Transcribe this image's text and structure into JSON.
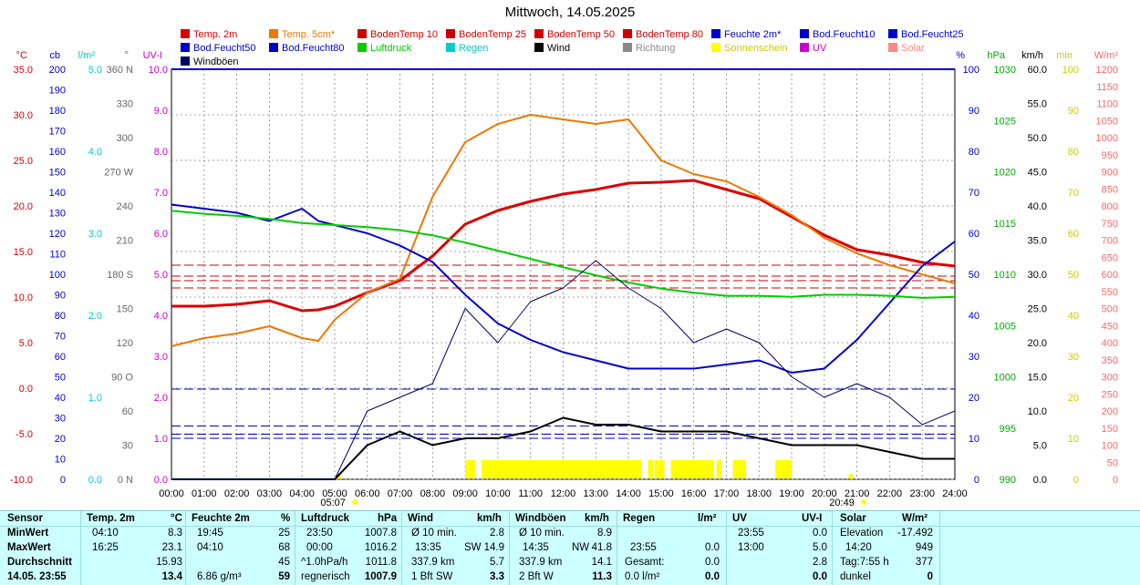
{
  "title": "Mittwoch, 14.05.2025",
  "legend": [
    {
      "label": "Temp. 2m",
      "color": "#dd0000"
    },
    {
      "label": "Temp. 5cm*",
      "color": "#ee7700"
    },
    {
      "label": "BodenTemp 10",
      "color": "#cc0000"
    },
    {
      "label": "BodenTemp 25",
      "color": "#cc0000"
    },
    {
      "label": "BodenTemp 50",
      "color": "#cc0000"
    },
    {
      "label": "BodenTemp 80",
      "color": "#cc0000"
    },
    {
      "label": "Feuchte 2m*",
      "color": "#0000cc"
    },
    {
      "label": "Bod.Feucht10",
      "color": "#0000cc"
    },
    {
      "label": "Bod.Feucht25",
      "color": "#0000cc"
    },
    {
      "label": "Bod.Feucht50",
      "color": "#0000cc"
    },
    {
      "label": "Bod.Feucht80",
      "color": "#0000cc"
    },
    {
      "label": "Luftdruck",
      "color": "#00cc00"
    },
    {
      "label": "Regen",
      "color": "#00cccc"
    },
    {
      "label": "Wind",
      "color": "#000000"
    },
    {
      "label": "Richtung",
      "color": "#888888"
    },
    {
      "label": "Sonnenschein",
      "color": "#ffff00"
    },
    {
      "label": "UV",
      "color": "#cc00cc"
    },
    {
      "label": "Solar",
      "color": "#ff8888"
    },
    {
      "label": "Windböen",
      "color": "#000066"
    }
  ],
  "axis_units": {
    "temp": "°C",
    "cb": "cb",
    "rain": "l/m²",
    "dir": "°",
    "uv": "UV-I",
    "hum": "%",
    "press": "hPa",
    "wind": "km/h",
    "sun": "min",
    "solar": "W/m²"
  },
  "axes": {
    "temp": [
      "35.0",
      "30.0",
      "25.0",
      "20.0",
      "15.0",
      "10.0",
      "5.0",
      "0.0",
      "-5.0",
      "-10.0"
    ],
    "cb": [
      "200",
      "190",
      "180",
      "170",
      "160",
      "150",
      "140",
      "130",
      "120",
      "110",
      "100",
      "90",
      "80",
      "70",
      "60",
      "50",
      "40",
      "30",
      "20",
      "10",
      "0"
    ],
    "rain": [
      "5.0",
      "4.0",
      "3.0",
      "2.0",
      "1.0",
      "0.0"
    ],
    "dir": [
      "360 N",
      "330",
      "300",
      "270 W",
      "240",
      "210",
      "180 S",
      "150",
      "120",
      "90 O",
      "60",
      "30",
      "0 N"
    ],
    "uv": [
      "10.0",
      "9.0",
      "8.0",
      "7.0",
      "6.0",
      "5.0",
      "4.0",
      "3.0",
      "2.0",
      "1.0",
      "0.0"
    ],
    "hum": [
      "100",
      "90",
      "80",
      "70",
      "60",
      "50",
      "40",
      "30",
      "20",
      "10",
      "0"
    ],
    "press": [
      "1030",
      "1025",
      "1020",
      "1015",
      "1010",
      "1005",
      "1000",
      "995",
      "990"
    ],
    "wind": [
      "60.0",
      "55.0",
      "50.0",
      "45.0",
      "40.0",
      "35.0",
      "30.0",
      "25.0",
      "20.0",
      "15.0",
      "10.0",
      "5.0",
      "0.0"
    ],
    "sun": [
      "100",
      "90",
      "80",
      "70",
      "60",
      "50",
      "40",
      "30",
      "20",
      "10",
      "0"
    ],
    "solar": [
      "1200",
      "1150",
      "1100",
      "1050",
      "1000",
      "950",
      "900",
      "850",
      "800",
      "750",
      "700",
      "650",
      "600",
      "550",
      "500",
      "450",
      "400",
      "350",
      "300",
      "250",
      "200",
      "150",
      "100",
      "50",
      "0"
    ]
  },
  "x_ticks": [
    "00:00",
    "01:00",
    "02:00",
    "03:00",
    "04:00",
    "05:00",
    "06:00",
    "07:00",
    "08:00",
    "09:00",
    "10:00",
    "11:00",
    "12:00",
    "13:00",
    "14:00",
    "15:00",
    "16:00",
    "17:00",
    "18:00",
    "19:00",
    "20:00",
    "21:00",
    "22:00",
    "23:00",
    "24:00"
  ],
  "sunrise": "05:07",
  "sunset": "20:49",
  "chart_data": {
    "type": "line",
    "title": "Mittwoch, 14.05.2025",
    "x_hours": [
      0,
      1,
      2,
      3,
      4,
      4.5,
      5,
      6,
      7,
      8,
      9,
      10,
      11,
      12,
      13,
      14,
      15,
      16,
      17,
      18,
      19,
      20,
      21,
      22,
      23,
      24
    ],
    "series": [
      {
        "name": "Temp. 2m",
        "color": "#dd0000",
        "axis": "temp",
        "values": [
          9.0,
          9.0,
          9.2,
          9.6,
          8.5,
          8.6,
          9.0,
          10.5,
          11.8,
          14.5,
          18.0,
          19.5,
          20.5,
          21.3,
          21.8,
          22.5,
          22.6,
          22.8,
          21.8,
          20.8,
          18.8,
          16.8,
          15.2,
          14.6,
          13.8,
          13.4
        ]
      },
      {
        "name": "Temp. 5cm*",
        "color": "#ee7700",
        "axis": "temp",
        "values": [
          4.6,
          5.5,
          6.0,
          6.8,
          5.5,
          5.2,
          7.5,
          10.5,
          12.0,
          21.0,
          27.0,
          29.0,
          30.0,
          29.5,
          29.0,
          29.5,
          25.0,
          23.5,
          22.7,
          21.0,
          19.0,
          16.5,
          14.8,
          13.5,
          12.5,
          11.5
        ]
      },
      {
        "name": "Feuchte 2m*",
        "color": "#0000cc",
        "axis": "hum",
        "values": [
          67,
          66,
          65,
          63,
          66,
          63,
          62,
          60,
          57,
          53,
          45,
          38,
          34,
          31,
          29,
          27,
          27,
          27,
          28,
          29,
          26,
          27,
          34,
          43,
          52,
          58
        ]
      },
      {
        "name": "Luftdruck",
        "color": "#00cc00",
        "axis": "press",
        "values": [
          1016.2,
          1015.9,
          1015.7,
          1015.4,
          1015.0,
          1014.9,
          1014.8,
          1014.6,
          1014.3,
          1013.8,
          1013.1,
          1012.3,
          1011.5,
          1010.7,
          1009.9,
          1009.2,
          1008.6,
          1008.2,
          1007.9,
          1007.9,
          1007.8,
          1008.0,
          1008.0,
          1007.9,
          1007.7,
          1007.8
        ]
      },
      {
        "name": "Wind",
        "color": "#000000",
        "axis": "wind",
        "values": [
          0,
          0,
          0,
          0,
          0,
          0,
          0,
          5,
          7,
          5,
          6,
          6,
          7,
          9,
          8,
          8,
          7,
          7,
          7,
          6,
          5,
          5,
          5,
          4,
          3,
          3
        ]
      },
      {
        "name": "Windböen",
        "color": "#000066",
        "axis": "wind",
        "values": [
          0,
          0,
          0,
          0,
          0,
          0,
          0,
          10,
          12,
          14,
          25,
          20,
          26,
          28,
          32,
          28,
          25,
          20,
          22,
          20,
          15,
          12,
          14,
          12,
          8,
          10
        ]
      }
    ],
    "soil_temps": [
      {
        "name": "BodenTemp 10",
        "value": 13.5
      },
      {
        "name": "BodenTemp 25",
        "value": 12.3
      },
      {
        "name": "BodenTemp 50",
        "value": 11.8
      },
      {
        "name": "BodenTemp 80",
        "value": 11.0
      }
    ],
    "soil_moist": [
      {
        "name": "Bod.Feucht10",
        "value": 22
      },
      {
        "name": "Bod.Feucht25",
        "value": 13
      },
      {
        "name": "Bod.Feucht50",
        "value": 11
      },
      {
        "name": "Bod.Feucht80",
        "value": 10
      }
    ],
    "sunshine": [
      [
        9.0,
        9.3
      ],
      [
        9.5,
        14.4
      ],
      [
        14.6,
        14.75
      ],
      [
        14.8,
        15.1
      ],
      [
        15.3,
        16.6
      ],
      [
        16.7,
        16.85
      ],
      [
        17.2,
        17.6
      ],
      [
        18.5,
        19.0
      ]
    ]
  },
  "table": {
    "headers": {
      "sensor": "Sensor",
      "temp": "Temp. 2m",
      "temp_u": "°C",
      "hum": "Feuchte 2m",
      "hum_u": "%",
      "press": "Luftdruck",
      "press_u": "hPa",
      "wind": "Wind",
      "wind_u": "km/h",
      "gust": "Windböen",
      "gust_u": "km/h",
      "rain": "Regen",
      "rain_u": "l/m²",
      "uvt": "UV",
      "uv_u": "UV-I",
      "solar": "Solar",
      "solar_u": "W/m²"
    },
    "rowlabels": {
      "min": "MinWert",
      "max": "MaxWert",
      "avg": "Durchschnitt",
      "now": "14.05. 23:55"
    },
    "temp": {
      "min_t": "04:10",
      "min": "8.3",
      "max_t": "16:25",
      "max": "23.1",
      "avg": "15.93",
      "now": "13.4"
    },
    "hum": {
      "min_t": "19:45",
      "min": "25",
      "max_t": "04:10",
      "max": "68",
      "avg": "45",
      "now_a": "6.86 g/m³",
      "now": "59"
    },
    "press": {
      "min_t": "23:50",
      "min": "1007.8",
      "max_t": "00:00",
      "max": "1016.2",
      "avg_l": "^1.0hPa/h",
      "avg": "1011.8",
      "now_l": "regnerisch",
      "now": "1007.9"
    },
    "wind": {
      "min_l": "Ø 10 min.",
      "min": "2.8",
      "max_t": "13:35",
      "max_l": "SW",
      "max": "14.9",
      "avg_l": "337.9 km",
      "avg": "5.7",
      "now_l": "1 Bft SW",
      "now": "3.3"
    },
    "gust": {
      "min_l": "Ø 10 min.",
      "min": "8.9",
      "max_t": "14:35",
      "max_l": "NW",
      "max": "41.8",
      "avg_l": "337.9 km",
      "avg": "14.1",
      "now_l": "2 Bft W",
      "now": "11.3"
    },
    "rain": {
      "max_t": "23:55",
      "max": "0.0",
      "avg_l": "Gesamt:",
      "avg": "0.0",
      "now_l": "0.0 l/m²",
      "now": "0.0"
    },
    "uv": {
      "min_t": "23:55",
      "min": "0.0",
      "max_t": "13:00",
      "max": "5.0",
      "avg": "2.8",
      "now": "0.0"
    },
    "solar": {
      "min_l": "Elevation",
      "min": "-17.492",
      "max_t": "14:20",
      "max": "949",
      "avg_l": "Tag:7:55 h",
      "avg": "377",
      "now_l": "dunkel",
      "now": "0"
    }
  }
}
